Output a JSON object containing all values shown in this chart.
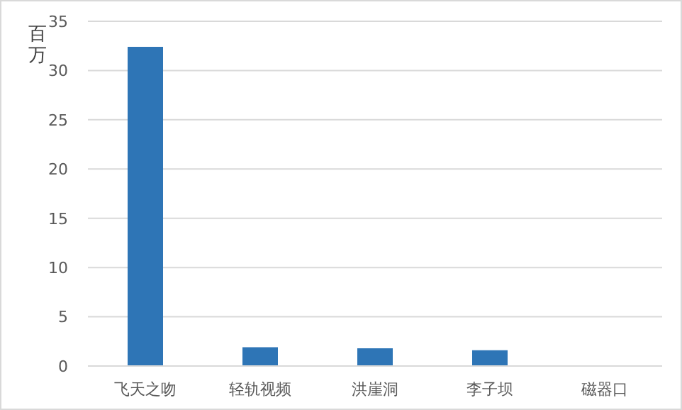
{
  "chart_data": {
    "type": "bar",
    "ylabel": "百万",
    "categories": [
      "飞天之吻",
      "轻轨视频",
      "洪崖洞",
      "李子坝",
      "磁器口"
    ],
    "values": [
      32.4,
      1.9,
      1.8,
      1.6,
      0
    ],
    "color": "#2e75b6",
    "ylim": [
      0,
      35
    ],
    "yticks": [
      0,
      5,
      10,
      15,
      20,
      25,
      30,
      35
    ],
    "grid": "y"
  }
}
